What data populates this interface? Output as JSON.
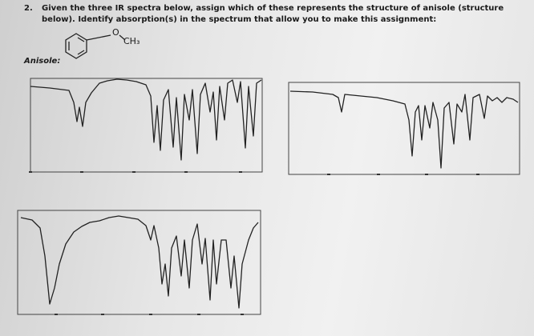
{
  "question": {
    "number": "2.",
    "text": "Given the three IR spectra below, assign which of these represents the structure of anisole (structure below). Identify absorption(s) in the spectrum that allow you to make this assignment:"
  },
  "structure": {
    "oxygen": "O",
    "methyl": "CH₃"
  },
  "label": "Anisole:"
}
